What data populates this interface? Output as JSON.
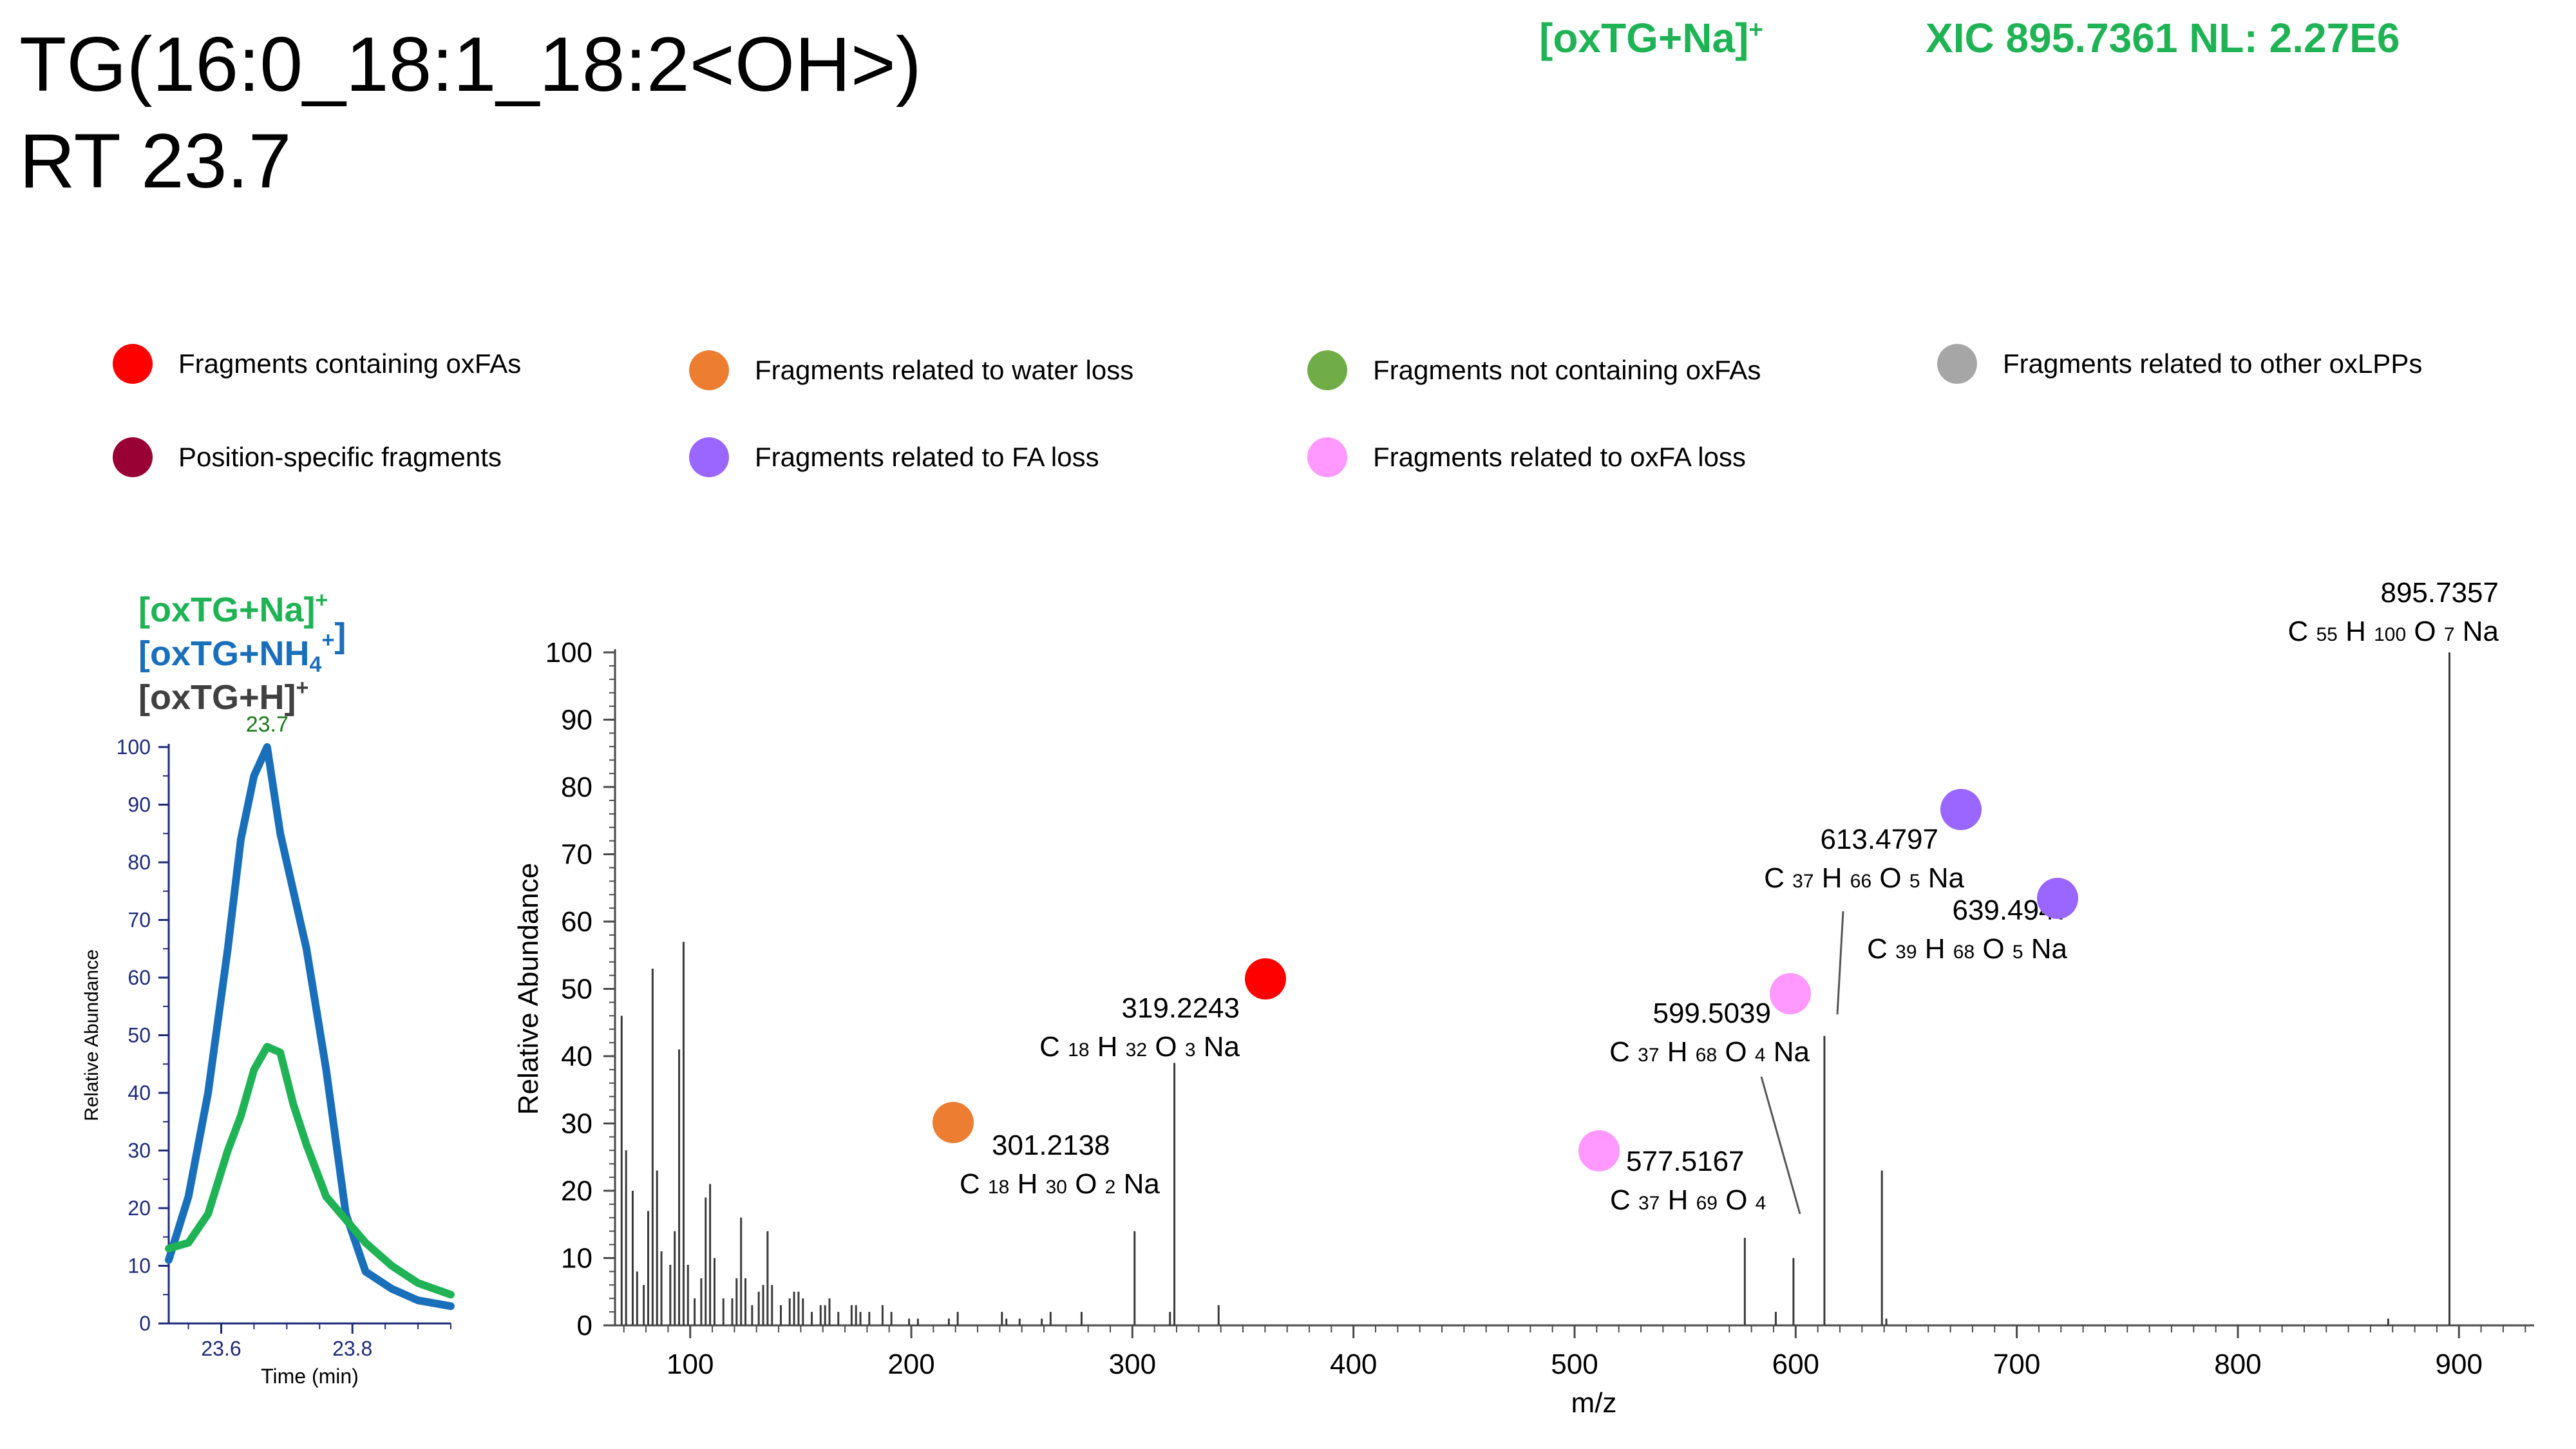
{
  "header": {
    "title_line1": "TG(16:0_18:1_18:2<OH>)",
    "title_line2": "RT 23.7",
    "ion": "[oxTG+Na]",
    "ion_sup": "+",
    "xic": "XIC 895.7361 NL: 2.27E6"
  },
  "legend": [
    {
      "label": "Fragments containing oxFAs",
      "color": "#ff0000"
    },
    {
      "label": "Fragments related to water loss",
      "color": "#ed7d31"
    },
    {
      "label": "Fragments not containing oxFAs",
      "color": "#70ad47"
    },
    {
      "label": "Fragments related to other oxLPPs",
      "color": "#a6a6a6"
    },
    {
      "label": "Position-specific fragments",
      "color": "#990033"
    },
    {
      "label": "Fragments related to FA loss",
      "color": "#9966ff"
    },
    {
      "label": "Fragments related to oxFA loss",
      "color": "#ff99ff"
    }
  ],
  "chart_data": [
    {
      "type": "line",
      "ion_labels": [
        {
          "text": "[oxTG+Na]",
          "sup": "+",
          "color": "#1fb355"
        },
        {
          "text": "[oxTG+NH",
          "sub": "4",
          "sup": "+",
          "close": "]",
          "color": "#1a6fba"
        },
        {
          "text": "[oxTG+H]",
          "sup": "+",
          "color": "#404040"
        }
      ],
      "peak_label": "23.7",
      "xlabel": "Time (min)",
      "ylabel": "Relative Abundance",
      "xlim": [
        23.52,
        23.95
      ],
      "ylim": [
        0,
        100
      ],
      "xticks": [
        "23.6",
        "23.8"
      ],
      "yticks": [
        "0",
        "10",
        "20",
        "30",
        "40",
        "50",
        "60",
        "70",
        "80",
        "90",
        "100"
      ],
      "series": [
        {
          "color": "#1a6fba",
          "x": [
            23.52,
            23.55,
            23.58,
            23.61,
            23.63,
            23.65,
            23.67,
            23.69,
            23.71,
            23.73,
            23.76,
            23.79,
            23.82,
            23.86,
            23.9,
            23.95
          ],
          "y": [
            11,
            22,
            40,
            65,
            84,
            95,
            100,
            85,
            75,
            65,
            44,
            19,
            9,
            6,
            4,
            3
          ]
        },
        {
          "color": "#1fb355",
          "x": [
            23.52,
            23.55,
            23.58,
            23.61,
            23.63,
            23.65,
            23.67,
            23.69,
            23.71,
            23.73,
            23.76,
            23.79,
            23.82,
            23.86,
            23.9,
            23.95
          ],
          "y": [
            13,
            14,
            19,
            30,
            36,
            44,
            48,
            47,
            38,
            31,
            22,
            18,
            14,
            10,
            7,
            5
          ]
        }
      ]
    },
    {
      "type": "bar",
      "xlabel": "m/z",
      "ylabel": "Relative Abundance",
      "xlim": [
        66,
        934
      ],
      "ylim": [
        0,
        100
      ],
      "xticks": [
        "100",
        "200",
        "300",
        "400",
        "500",
        "600",
        "700",
        "800",
        "900"
      ],
      "yticks": [
        "0",
        "10",
        "20",
        "30",
        "40",
        "50",
        "60",
        "70",
        "80",
        "90",
        "100"
      ],
      "peaks": [
        {
          "mz": 69,
          "i": 46
        },
        {
          "mz": 71,
          "i": 26
        },
        {
          "mz": 74,
          "i": 20
        },
        {
          "mz": 76,
          "i": 8
        },
        {
          "mz": 79,
          "i": 6
        },
        {
          "mz": 81,
          "i": 17
        },
        {
          "mz": 83,
          "i": 53
        },
        {
          "mz": 85,
          "i": 23
        },
        {
          "mz": 87,
          "i": 11
        },
        {
          "mz": 91,
          "i": 9
        },
        {
          "mz": 93,
          "i": 14
        },
        {
          "mz": 95,
          "i": 41
        },
        {
          "mz": 97,
          "i": 57
        },
        {
          "mz": 99,
          "i": 9
        },
        {
          "mz": 102,
          "i": 4
        },
        {
          "mz": 105,
          "i": 7
        },
        {
          "mz": 107,
          "i": 19
        },
        {
          "mz": 109,
          "i": 21
        },
        {
          "mz": 111,
          "i": 10
        },
        {
          "mz": 115,
          "i": 4
        },
        {
          "mz": 119,
          "i": 4
        },
        {
          "mz": 121,
          "i": 7
        },
        {
          "mz": 123,
          "i": 16
        },
        {
          "mz": 125,
          "i": 7
        },
        {
          "mz": 128,
          "i": 3
        },
        {
          "mz": 131,
          "i": 5
        },
        {
          "mz": 133,
          "i": 6
        },
        {
          "mz": 135,
          "i": 14
        },
        {
          "mz": 137,
          "i": 6
        },
        {
          "mz": 141,
          "i": 3
        },
        {
          "mz": 145,
          "i": 4
        },
        {
          "mz": 147,
          "i": 5
        },
        {
          "mz": 149,
          "i": 5
        },
        {
          "mz": 151,
          "i": 4
        },
        {
          "mz": 155,
          "i": 2
        },
        {
          "mz": 159,
          "i": 3
        },
        {
          "mz": 161,
          "i": 3
        },
        {
          "mz": 163,
          "i": 4
        },
        {
          "mz": 167,
          "i": 2
        },
        {
          "mz": 173,
          "i": 3
        },
        {
          "mz": 175,
          "i": 3
        },
        {
          "mz": 177,
          "i": 2
        },
        {
          "mz": 181,
          "i": 2
        },
        {
          "mz": 187,
          "i": 3
        },
        {
          "mz": 191,
          "i": 2
        },
        {
          "mz": 199,
          "i": 1
        },
        {
          "mz": 203,
          "i": 1
        },
        {
          "mz": 217,
          "i": 1
        },
        {
          "mz": 221,
          "i": 2
        },
        {
          "mz": 241,
          "i": 2
        },
        {
          "mz": 243,
          "i": 1
        },
        {
          "mz": 249,
          "i": 1
        },
        {
          "mz": 259,
          "i": 1
        },
        {
          "mz": 263,
          "i": 2
        },
        {
          "mz": 277,
          "i": 2
        },
        {
          "mz": 301,
          "i": 14
        },
        {
          "mz": 317,
          "i": 2
        },
        {
          "mz": 319,
          "i": 39
        },
        {
          "mz": 339,
          "i": 3
        },
        {
          "mz": 577,
          "i": 13
        },
        {
          "mz": 591,
          "i": 2
        },
        {
          "mz": 599,
          "i": 10
        },
        {
          "mz": 613,
          "i": 43
        },
        {
          "mz": 639,
          "i": 23
        },
        {
          "mz": 641,
          "i": 1
        },
        {
          "mz": 868,
          "i": 1
        },
        {
          "mz": 895.7,
          "i": 100
        }
      ],
      "annotations": [
        {
          "mz_value": "895.7357",
          "c": "55",
          "h": "100",
          "o": "7",
          "na": true
        },
        {
          "mz_value": "319.2243",
          "c": "18",
          "h": "32",
          "o": "3",
          "na": true,
          "marker": "#ff0000"
        },
        {
          "mz_value": "301.2138",
          "c": "18",
          "h": "30",
          "o": "2",
          "na": true,
          "marker": "#ed7d31"
        },
        {
          "mz_value": "577.5167",
          "c": "37",
          "h": "69",
          "o": "4",
          "na": false,
          "marker": "#ff99ff"
        },
        {
          "mz_value": "599.5039",
          "c": "37",
          "h": "68",
          "o": "4",
          "na": true,
          "marker": "#ff99ff"
        },
        {
          "mz_value": "613.4797",
          "c": "37",
          "h": "66",
          "o": "5",
          "na": true,
          "marker": "#9966ff"
        },
        {
          "mz_value": "639.4947",
          "c": "39",
          "h": "68",
          "o": "5",
          "na": true,
          "marker": "#9966ff"
        }
      ]
    }
  ]
}
